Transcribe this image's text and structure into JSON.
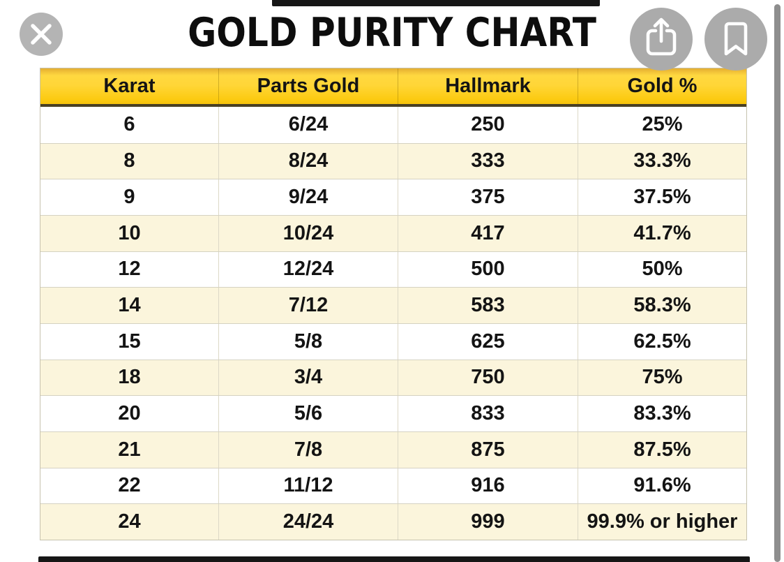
{
  "title": "GOLD PURITY CHART",
  "viewer": {
    "icons": {
      "close": "x-cross",
      "share": "box-with-up-arrow",
      "bookmark": "bookmark-ribbon",
      "scrollbar": "vertical-scrollbar-thumb"
    },
    "colors": {
      "button_gray": "#b0b0b0",
      "icon_white": "#ffffff",
      "scrollbar_gray": "#8e8e8e",
      "letterbox_black": "#161616"
    }
  },
  "table": {
    "columns": [
      "Karat",
      "Parts Gold",
      "Hallmark",
      "Gold %"
    ],
    "rows": [
      [
        "6",
        "6/24",
        "250",
        "25%"
      ],
      [
        "8",
        "8/24",
        "333",
        "33.3%"
      ],
      [
        "9",
        "9/24",
        "375",
        "37.5%"
      ],
      [
        "10",
        "10/24",
        "417",
        "41.7%"
      ],
      [
        "12",
        "12/24",
        "500",
        "50%"
      ],
      [
        "14",
        "7/12",
        "583",
        "58.3%"
      ],
      [
        "15",
        "5/8",
        "625",
        "62.5%"
      ],
      [
        "18",
        "3/4",
        "750",
        "75%"
      ],
      [
        "20",
        "5/6",
        "833",
        "83.3%"
      ],
      [
        "21",
        "7/8",
        "875",
        "87.5%"
      ],
      [
        "22",
        "11/12",
        "916",
        "91.6%"
      ],
      [
        "24",
        "24/24",
        "999",
        "99.9% or higher"
      ]
    ],
    "colors": {
      "header_gradient_top": "#e5ae31",
      "header_gradient_main": "#ffd637",
      "header_gradient_bottom": "#f7c40c",
      "header_bottom_border": "#494023",
      "row_white": "#ffffff",
      "row_cream": "#fbf5dc",
      "grid_line": "#d5d2c2",
      "text": "#141414"
    }
  },
  "chart_data": {
    "type": "table",
    "title": "GOLD PURITY CHART",
    "columns": [
      "Karat",
      "Parts Gold",
      "Hallmark",
      "Gold %"
    ],
    "rows": [
      [
        "6",
        "6/24",
        "250",
        "25%"
      ],
      [
        "8",
        "8/24",
        "333",
        "33.3%"
      ],
      [
        "9",
        "9/24",
        "375",
        "37.5%"
      ],
      [
        "10",
        "10/24",
        "417",
        "41.7%"
      ],
      [
        "12",
        "12/24",
        "500",
        "50%"
      ],
      [
        "14",
        "7/12",
        "583",
        "58.3%"
      ],
      [
        "15",
        "5/8",
        "625",
        "62.5%"
      ],
      [
        "18",
        "3/4",
        "750",
        "75%"
      ],
      [
        "20",
        "5/6",
        "833",
        "83.3%"
      ],
      [
        "21",
        "7/8",
        "875",
        "87.5%"
      ],
      [
        "22",
        "11/12",
        "916",
        "91.6%"
      ],
      [
        "24",
        "24/24",
        "999",
        "99.9% or higher"
      ]
    ]
  }
}
